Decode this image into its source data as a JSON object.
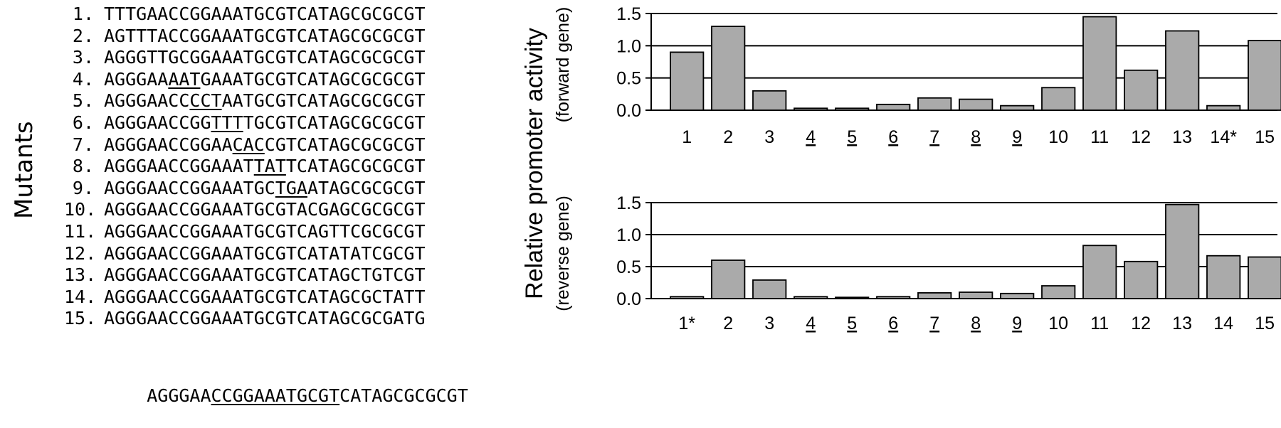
{
  "y_axis_title": "Relative promoter activity",
  "rows_title": "Mutants",
  "mutants": [
    {
      "label": "1.",
      "pre": "TTTGAACCGGAAATGCGTCATAGCGCGCGT",
      "mid": "",
      "post": ""
    },
    {
      "label": "2.",
      "pre": "AGTTTACCGGAAATGCGTCATAGCGCGCGT",
      "mid": "",
      "post": ""
    },
    {
      "label": "3.",
      "pre": "AGGGTTGCGGAAATGCGTCATAGCGCGCGT",
      "mid": "",
      "post": ""
    },
    {
      "label": "4.",
      "pre": "AGGGAA",
      "mid": "AAT",
      "post": "GAAATGCGTCATAGCGCGCGT"
    },
    {
      "label": "5.",
      "pre": "AGGGAACC",
      "mid": "CCT",
      "post": "AATGCGTCATAGCGCGCGT"
    },
    {
      "label": "6.",
      "pre": "AGGGAACCGG",
      "mid": "TTT",
      "post": "TGCGTCATAGCGCGCGT"
    },
    {
      "label": "7.",
      "pre": "AGGGAACCGGAA",
      "mid": "CAC",
      "post": "CGTCATAGCGCGCGT"
    },
    {
      "label": "8.",
      "pre": "AGGGAACCGGAAAT",
      "mid": "TAT",
      "post": "TCATAGCGCGCGT"
    },
    {
      "label": "9.",
      "pre": "AGGGAACCGGAAATGC",
      "mid": "TGA",
      "post": "ATAGCGCGCGT"
    },
    {
      "label": "10.",
      "pre": "AGGGAACCGGAAATGCGTACGAGCGCGCGT",
      "mid": "",
      "post": ""
    },
    {
      "label": "11.",
      "pre": "AGGGAACCGGAAATGCGTCAGTTCGCGCGT",
      "mid": "",
      "post": ""
    },
    {
      "label": "12.",
      "pre": "AGGGAACCGGAAATGCGTCATATATCGCGT",
      "mid": "",
      "post": ""
    },
    {
      "label": "13.",
      "pre": "AGGGAACCGGAAATGCGTCATAGCTGTCGT",
      "mid": "",
      "post": ""
    },
    {
      "label": "14.",
      "pre": "AGGGAACCGGAAATGCGTCATAGCGCTATT",
      "mid": "",
      "post": ""
    },
    {
      "label": "15.",
      "pre": "AGGGAACCGGAAATGCGTCATAGCGCGATG",
      "mid": "",
      "post": ""
    }
  ],
  "reference": {
    "pre": "AGGGAA",
    "mid": "CCGGAAATGCGT",
    "post": "CATAGCGCGCGT"
  },
  "chart_data": [
    {
      "type": "bar",
      "ylabel": "(forward gene)",
      "ylim": [
        0,
        1.5
      ],
      "yticks": [
        "0.0",
        "0.5",
        "1.0",
        "1.5"
      ],
      "ytick_values": [
        0,
        0.5,
        1.0,
        1.5
      ],
      "grid": true,
      "categories": [
        "1",
        "2",
        "3",
        "4",
        "5",
        "6",
        "7",
        "8",
        "9",
        "10",
        "11",
        "12",
        "13",
        "14*",
        "15"
      ],
      "underlined": [
        false,
        false,
        false,
        true,
        true,
        true,
        true,
        true,
        true,
        false,
        false,
        false,
        false,
        false,
        false
      ],
      "values": [
        0.9,
        1.3,
        0.3,
        0.03,
        0.03,
        0.09,
        0.19,
        0.17,
        0.07,
        0.35,
        1.45,
        0.62,
        1.23,
        0.07,
        1.08
      ],
      "bar_color": "#aaaaaa"
    },
    {
      "type": "bar",
      "ylabel": "(reverse gene)",
      "ylim": [
        0,
        1.5
      ],
      "yticks": [
        "0.0",
        "0.5",
        "1.0",
        "1.5"
      ],
      "ytick_values": [
        0,
        0.5,
        1.0,
        1.5
      ],
      "grid": true,
      "categories": [
        "1*",
        "2",
        "3",
        "4",
        "5",
        "6",
        "7",
        "8",
        "9",
        "10",
        "11",
        "12",
        "13",
        "14",
        "15"
      ],
      "underlined": [
        false,
        false,
        false,
        true,
        true,
        true,
        true,
        true,
        true,
        false,
        false,
        false,
        false,
        false,
        false
      ],
      "values": [
        0.03,
        0.6,
        0.29,
        0.03,
        0.02,
        0.03,
        0.09,
        0.1,
        0.08,
        0.2,
        0.83,
        0.58,
        1.47,
        0.67,
        0.65
      ],
      "bar_color": "#aaaaaa"
    }
  ]
}
